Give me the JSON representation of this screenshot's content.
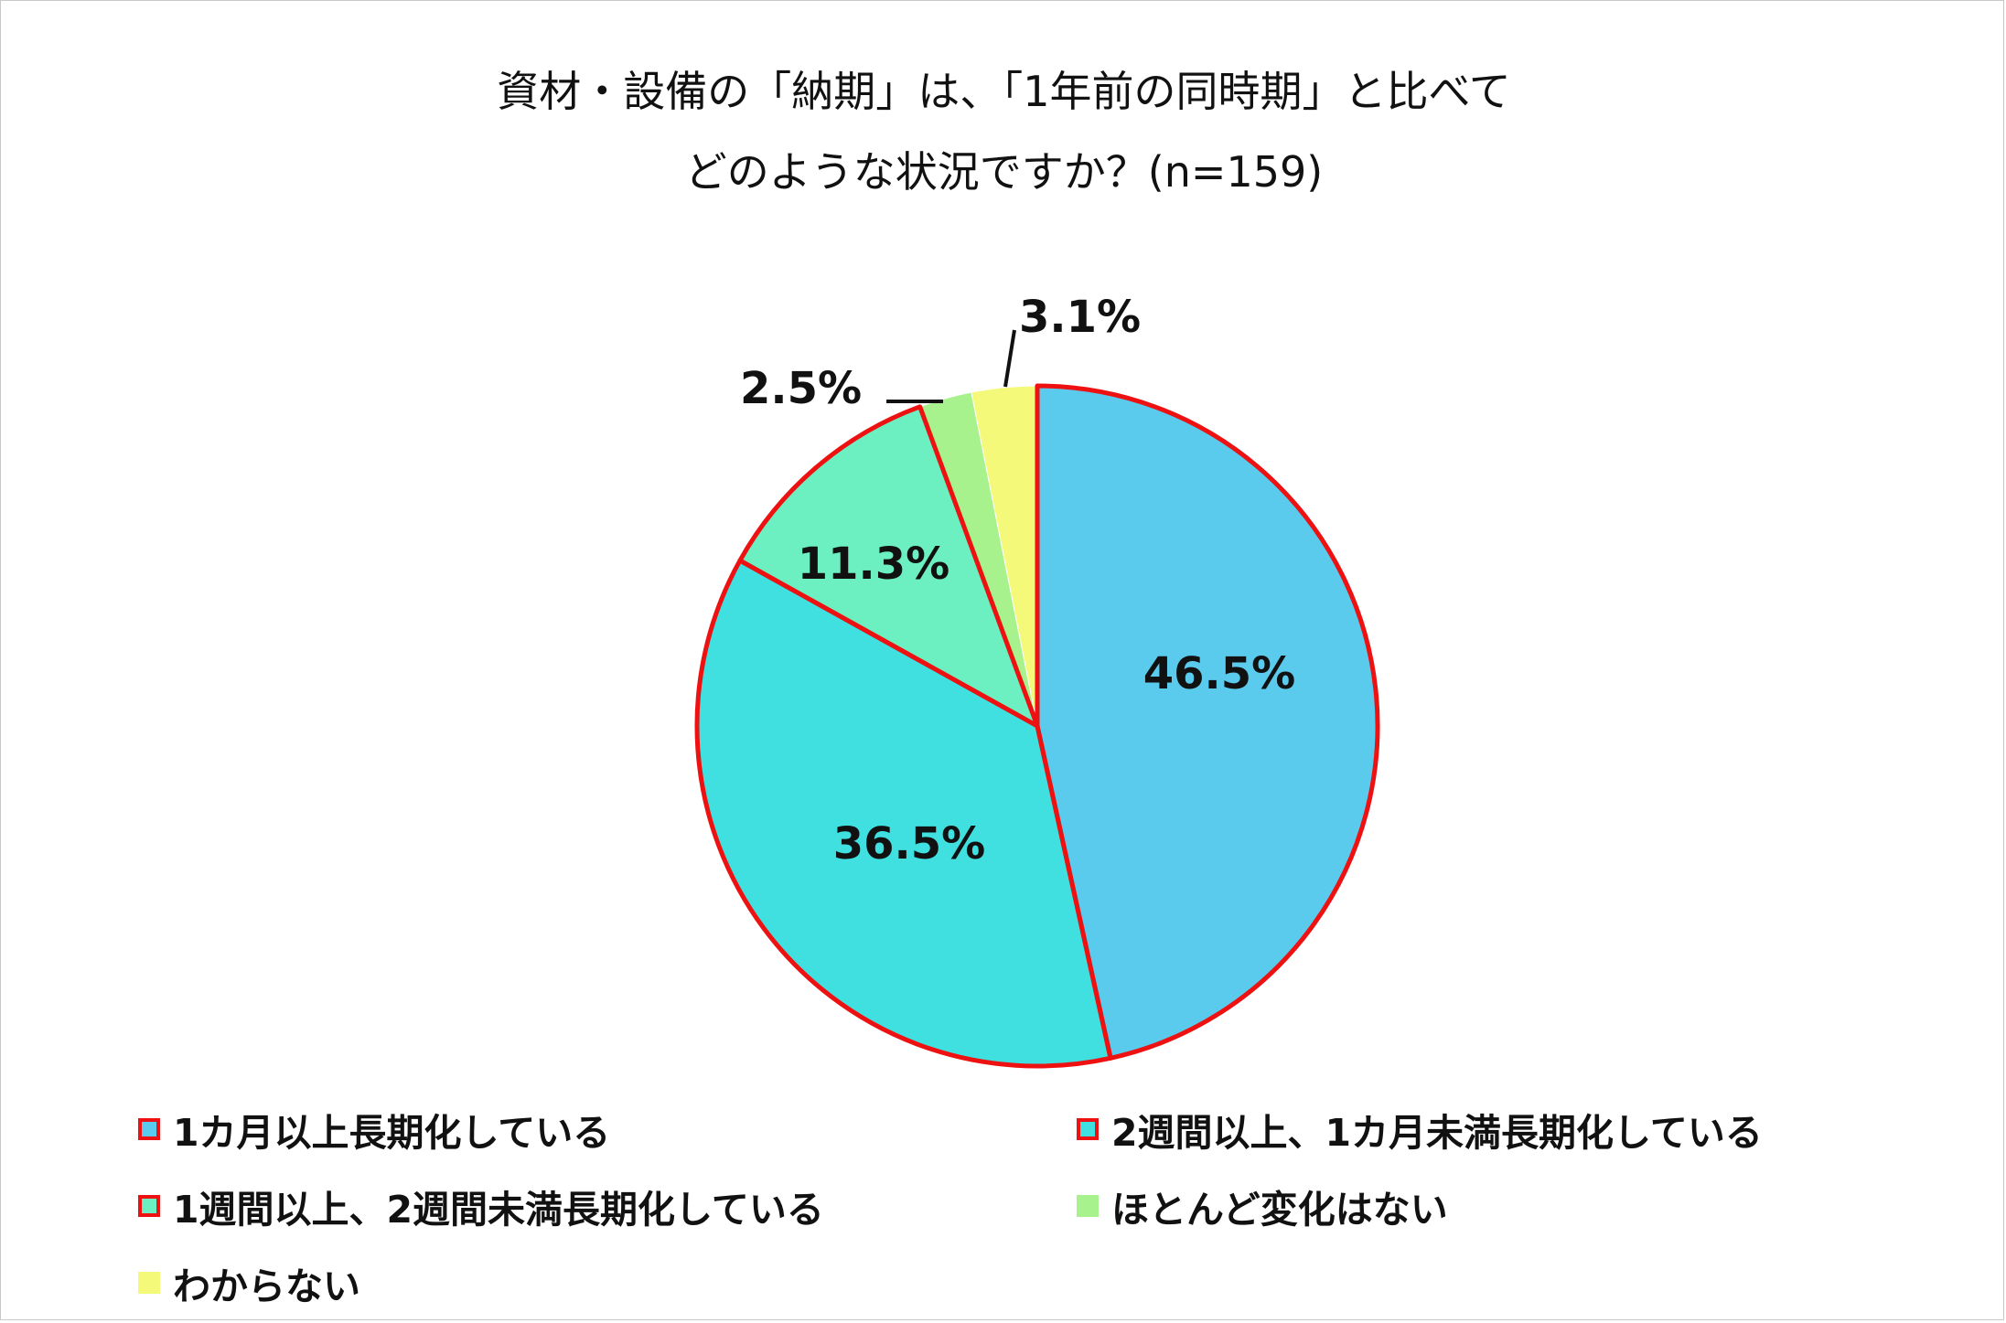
{
  "chart_data": {
    "type": "pie",
    "title_lines": [
      "資材・設備の「納期」は、「1年前の同時期」と比べて",
      "どのような状況ですか？(n=159)"
    ],
    "slices": [
      {
        "name": "1カ月以上長期化している",
        "value": 46.5,
        "label": "46.5%",
        "color": "#5bcbed",
        "highlight": true
      },
      {
        "name": "2週間以上、1カ月未満長期化している",
        "value": 36.5,
        "label": "36.5%",
        "color": "#40e0e0",
        "highlight": true
      },
      {
        "name": "1週間以上、2週間未満長期化している",
        "value": 11.3,
        "label": "11.3%",
        "color": "#6cf0c2",
        "highlight": true
      },
      {
        "name": "ほとんど変化はない",
        "value": 2.5,
        "label": "2.5%",
        "color": "#a8f28e",
        "highlight": false
      },
      {
        "name": "わからない",
        "value": 3.1,
        "label": "3.1%",
        "color": "#f5f97a",
        "highlight": false
      }
    ],
    "start_angle_deg": 0,
    "direction": "clockwise",
    "highlight_color": "#ee1111",
    "legend_position": "bottom"
  }
}
